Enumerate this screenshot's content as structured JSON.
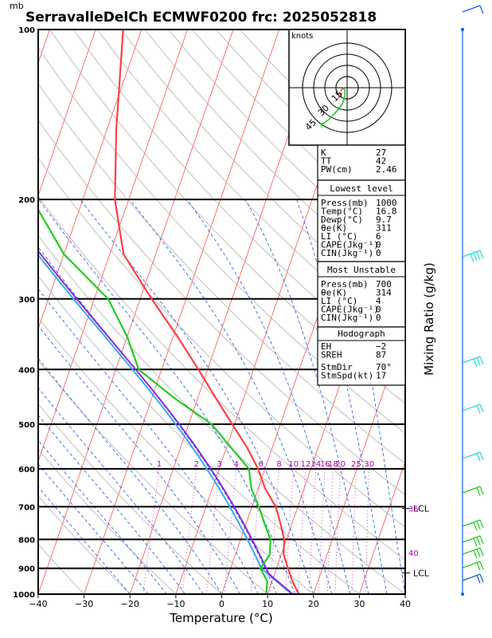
{
  "chart_data": {
    "type": "skew-t",
    "title": "SerravalleDelCh ECMWF0200 frc: 2025052818",
    "pressure_unit_label": "mb",
    "xlabel": "Temperature (°C)",
    "right_label": "Mixing Ratio (g/kg)",
    "x_ticks": [
      "−40",
      "−30",
      "−20",
      "−10",
      "0",
      "10",
      "20",
      "30",
      "40"
    ],
    "x_range": [
      -40,
      40
    ],
    "p_ticks": [
      {
        "p": 100,
        "label": "100"
      },
      {
        "p": 200,
        "label": "200"
      },
      {
        "p": 300,
        "label": "300"
      },
      {
        "p": 400,
        "label": "400"
      },
      {
        "p": 500,
        "label": "500"
      },
      {
        "p": 600,
        "label": "600"
      },
      {
        "p": 700,
        "label": "700"
      },
      {
        "p": 800,
        "label": "800"
      },
      {
        "p": 900,
        "label": "900"
      },
      {
        "p": 1000,
        "label": "1000"
      }
    ],
    "p_range": [
      1000,
      100
    ],
    "mixing_ratio_labels": [
      "1",
      "2",
      "3",
      "4",
      "6",
      "8",
      "10",
      "12",
      "14",
      "16",
      "18",
      "20",
      "25",
      "30"
    ],
    "temperature_profile": [
      {
        "p": 1000,
        "t": 16.8
      },
      {
        "p": 950,
        "t": 14.5
      },
      {
        "p": 900,
        "t": 12.5
      },
      {
        "p": 850,
        "t": 10.5
      },
      {
        "p": 800,
        "t": 9.5
      },
      {
        "p": 750,
        "t": 7.5
      },
      {
        "p": 700,
        "t": 5.2
      },
      {
        "p": 650,
        "t": 1.5
      },
      {
        "p": 600,
        "t": -1.5
      },
      {
        "p": 550,
        "t": -5.5
      },
      {
        "p": 500,
        "t": -10.5
      },
      {
        "p": 450,
        "t": -16
      },
      {
        "p": 400,
        "t": -22
      },
      {
        "p": 350,
        "t": -29
      },
      {
        "p": 300,
        "t": -37.5
      },
      {
        "p": 250,
        "t": -47
      },
      {
        "p": 200,
        "t": -53
      },
      {
        "p": 150,
        "t": -58
      },
      {
        "p": 100,
        "t": -64
      }
    ],
    "dewpoint_profile": [
      {
        "p": 1000,
        "t": 9.7
      },
      {
        "p": 950,
        "t": 9.0
      },
      {
        "p": 900,
        "t": 6.5
      },
      {
        "p": 850,
        "t": 7.5
      },
      {
        "p": 800,
        "t": 6.5
      },
      {
        "p": 750,
        "t": 4.0
      },
      {
        "p": 700,
        "t": 1.5
      },
      {
        "p": 650,
        "t": -1.5
      },
      {
        "p": 600,
        "t": -3.5
      },
      {
        "p": 550,
        "t": -9
      },
      {
        "p": 500,
        "t": -15
      },
      {
        "p": 450,
        "t": -25
      },
      {
        "p": 400,
        "t": -35
      },
      {
        "p": 350,
        "t": -40
      },
      {
        "p": 300,
        "t": -47
      },
      {
        "p": 250,
        "t": -60
      },
      {
        "p": 200,
        "t": -71
      },
      {
        "p": 150,
        "t": -80
      },
      {
        "p": 100,
        "t": -88
      }
    ],
    "colors": {
      "temperature": "#ff4040",
      "dewpoint": "#22cc22",
      "parcel_1": "#8a2be2",
      "parcel_2": "#33aaee",
      "isotherms": "#ff6060",
      "dry_adiabats": "#b0b0b0",
      "moist_adiabats": "#2255dd",
      "mixing_ratio": "#c040c0",
      "wind_barb": "#22dddd",
      "wind_barb_low": "#22cc22",
      "staff": "#1060e0"
    },
    "hodograph": {
      "unit_label": "knots",
      "ring_labels": [
        "15",
        "30",
        "45"
      ]
    },
    "lcl_markers": [
      {
        "p": 705,
        "label": "LCL"
      },
      {
        "p": 917,
        "label": "LCL"
      }
    ],
    "side_numbers": [
      {
        "p": 705,
        "label": "35"
      },
      {
        "p": 845,
        "label": "40"
      }
    ]
  },
  "indices_panel": {
    "top": [
      {
        "label": "K",
        "value": "27"
      },
      {
        "label": "TT",
        "value": "42"
      },
      {
        "label": "PW(cm)",
        "value": "2.46"
      }
    ],
    "lowest_level": {
      "header": "Lowest level",
      "rows": [
        {
          "label": "Press(mb)",
          "value": "1000"
        },
        {
          "label": "Temp(°C)",
          "value": "16.8"
        },
        {
          "label": "Dewp(°C)",
          "value": "9.7"
        },
        {
          "label": "θe(K)",
          "value": "311"
        },
        {
          "label": "LI (°C)",
          "value": "6"
        },
        {
          "label": "CAPE(Jkg⁻¹)",
          "value": "0"
        },
        {
          "label": "CIN(Jkg⁻¹)",
          "value": "0"
        }
      ]
    },
    "most_unstable": {
      "header": "Most Unstable",
      "rows": [
        {
          "label": "Press(mb)",
          "value": "700"
        },
        {
          "label": "θe(K)",
          "value": "314"
        },
        {
          "label": "LI (°C)",
          "value": "4"
        },
        {
          "label": "CAPE(Jkg⁻¹)",
          "value": "0"
        },
        {
          "label": "CIN(Jkg⁻¹)",
          "value": "0"
        }
      ]
    },
    "hodograph_stats": {
      "header": "Hodograph",
      "rows": [
        {
          "label": "EH",
          "value": "−2"
        },
        {
          "label": "SREH",
          "value": "87"
        },
        {
          "label": "StmDir",
          "value": "70°"
        },
        {
          "label": "StmSpd(kt)",
          "value": "17"
        }
      ]
    }
  }
}
